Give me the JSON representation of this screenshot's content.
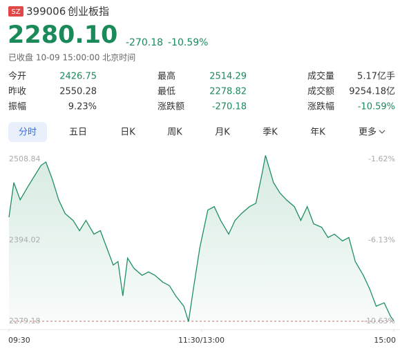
{
  "header": {
    "badge": "SZ",
    "code": "399006",
    "name": "创业板指",
    "price": "2280.10",
    "change": "-270.18",
    "change_pct": "-10.59%",
    "status": "已收盘 10-09 15:00:00 北京时间"
  },
  "stats": [
    {
      "label": "今开",
      "value": "2426.75",
      "color": "#1a8a5a"
    },
    {
      "label": "最高",
      "value": "2514.29",
      "color": "#1a8a5a"
    },
    {
      "label": "成交量",
      "value": "5.17亿手",
      "color": "#333333"
    },
    {
      "label": "昨收",
      "value": "2550.28",
      "color": "#333333"
    },
    {
      "label": "最低",
      "value": "2278.82",
      "color": "#1a8a5a"
    },
    {
      "label": "成交额",
      "value": "9254.18亿",
      "color": "#333333"
    },
    {
      "label": "振幅",
      "value": "9.23%",
      "color": "#333333"
    },
    {
      "label": "涨跌额",
      "value": "-270.18",
      "color": "#1a8a5a"
    },
    {
      "label": "涨跌幅",
      "value": "-10.59%",
      "color": "#1a8a5a"
    }
  ],
  "tabs": [
    "分时",
    "五日",
    "日K",
    "周K",
    "月K",
    "季K",
    "年K",
    "更多"
  ],
  "chart_data": {
    "type": "line",
    "color": "#1f8f5f",
    "x": [
      0,
      3,
      7,
      12,
      16,
      20,
      23,
      27,
      31,
      35,
      40,
      44,
      48,
      53,
      57,
      61,
      65,
      68,
      71,
      74,
      78,
      83,
      87,
      91,
      96,
      100,
      104,
      109,
      112,
      115,
      119,
      124,
      128,
      132,
      137,
      141,
      145,
      150,
      154,
      158,
      160,
      165,
      169,
      173,
      178,
      182,
      186,
      190,
      195,
      199,
      203,
      208,
      212,
      216,
      221,
      225,
      229,
      234,
      238,
      240
    ],
    "values": [
      2426.75,
      2475.7,
      2451.4,
      2470.9,
      2485.5,
      2500.1,
      2504.9,
      2480.6,
      2451.4,
      2431.9,
      2422.2,
      2407.6,
      2422.2,
      2402.7,
      2407.6,
      2383.3,
      2359.0,
      2363.8,
      2315.2,
      2368.7,
      2354.1,
      2344.4,
      2349.2,
      2344.4,
      2334.6,
      2329.8,
      2315.2,
      2300.6,
      2278.82,
      2324.9,
      2383.3,
      2436.8,
      2441.7,
      2422.2,
      2402.7,
      2422.2,
      2431.9,
      2441.7,
      2446.5,
      2490.3,
      2514.29,
      2475.7,
      2461.1,
      2451.4,
      2441.7,
      2422.2,
      2441.7,
      2417.4,
      2412.5,
      2397.9,
      2402.7,
      2393.0,
      2397.9,
      2363.8,
      2344.4,
      2324.9,
      2300.6,
      2305.4,
      2286.0,
      2280.1
    ],
    "xlim": [
      0,
      240
    ],
    "xticks": [
      {
        "value": 0,
        "label": "09:30"
      },
      {
        "value": 120,
        "label": "11:30/13:00"
      },
      {
        "value": 240,
        "label": "15:00"
      }
    ],
    "ylim": [
      2279.18,
      2508.84
    ],
    "yticks": [
      2508.84,
      2394.02,
      2279.18
    ],
    "y2lim": [
      -10.63,
      -1.62
    ],
    "y2ticks": [
      {
        "value": -1.62,
        "label": "-1.62%"
      },
      {
        "value": -6.13,
        "label": "-6.13%"
      },
      {
        "value": -10.63,
        "label": "-10.63%"
      }
    ]
  }
}
